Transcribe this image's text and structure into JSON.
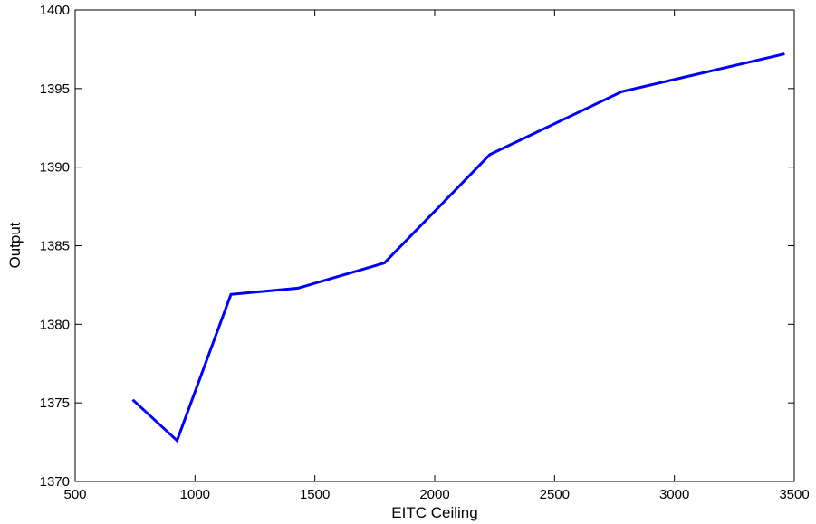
{
  "chart_data": {
    "type": "line",
    "title": "",
    "xlabel": "EITC Ceiling",
    "ylabel": "Output",
    "xlim": [
      500,
      3500
    ],
    "ylim": [
      1370,
      1400
    ],
    "xticks": [
      500,
      1000,
      1500,
      2000,
      2500,
      3000,
      3500
    ],
    "yticks": [
      1370,
      1375,
      1380,
      1385,
      1390,
      1395,
      1400
    ],
    "grid": false,
    "series": [
      {
        "color": "#0000ff",
        "points": [
          {
            "x": 740,
            "y": 1375.2
          },
          {
            "x": 925,
            "y": 1372.6
          },
          {
            "x": 1150,
            "y": 1381.9
          },
          {
            "x": 1430,
            "y": 1382.3
          },
          {
            "x": 1790,
            "y": 1383.9
          },
          {
            "x": 2230,
            "y": 1390.8
          },
          {
            "x": 2780,
            "y": 1394.8
          },
          {
            "x": 3460,
            "y": 1397.2
          }
        ]
      }
    ]
  }
}
